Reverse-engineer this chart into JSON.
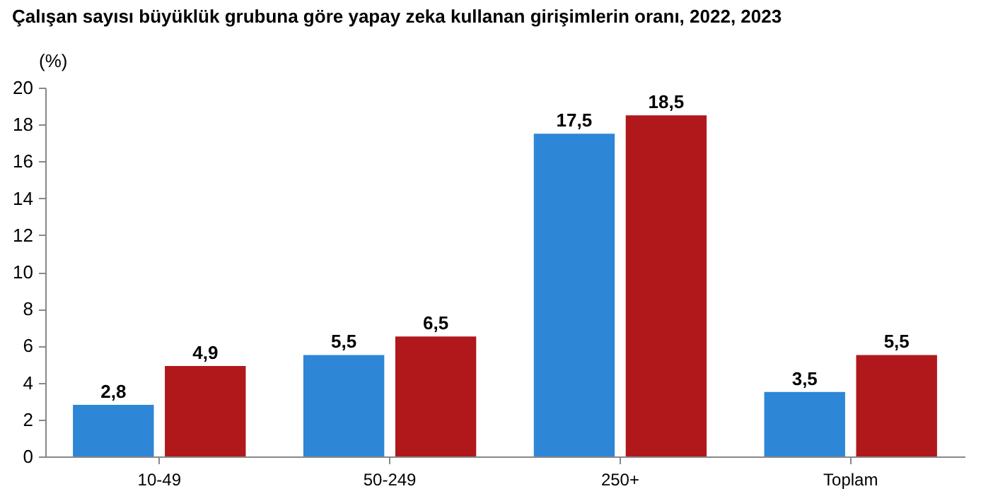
{
  "chart_data": {
    "type": "bar",
    "title": "Çalışan sayısı büyüklük grubuna göre yapay zeka kullanan girişimlerin oranı, 2022, 2023",
    "ylabel": "(%)",
    "categories": [
      "10-49",
      "50-249",
      "250+",
      "Toplam"
    ],
    "series": [
      {
        "color": "#2e86d6",
        "values": [
          2.8,
          5.5,
          17.5,
          3.5
        ],
        "value_labels": [
          "2,8",
          "5,5",
          "17,5",
          "3,5"
        ]
      },
      {
        "color": "#b0181c",
        "values": [
          4.9,
          6.5,
          18.5,
          5.5
        ],
        "value_labels": [
          "4,9",
          "6,5",
          "18,5",
          "5,5"
        ]
      }
    ],
    "ylim": [
      0,
      20
    ],
    "yticks": [
      0,
      2,
      4,
      6,
      8,
      10,
      12,
      14,
      16,
      18,
      20
    ],
    "grid": false,
    "legend": false
  }
}
